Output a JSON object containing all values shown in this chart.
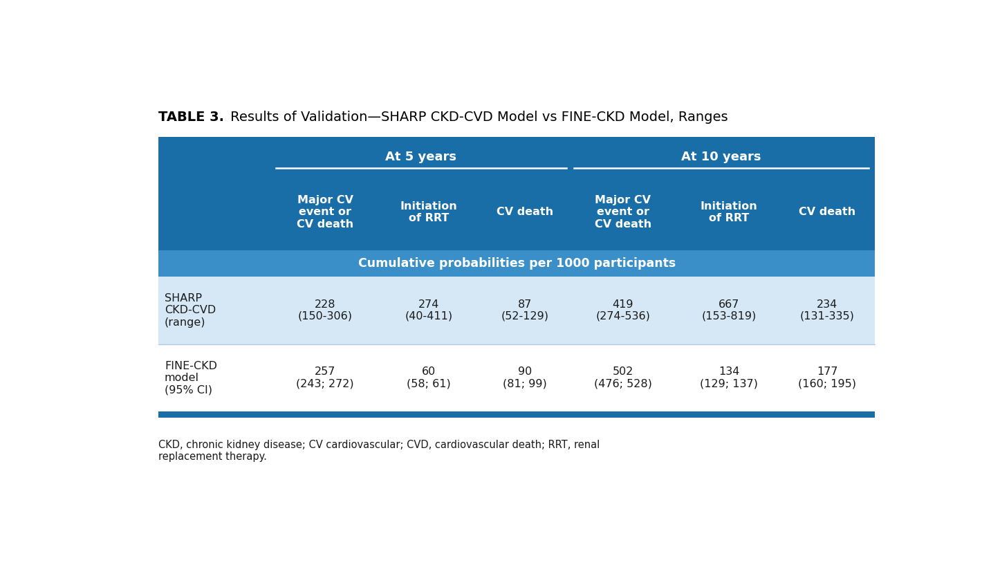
{
  "title_bold": "TABLE 3.",
  "title_regular": " Results of Validation—SHARP CKD-CVD Model vs FINE-CKD Model, Ranges",
  "header_bg_dark": "#1A6EA8",
  "header_bg_medium": "#3B8FC8",
  "row_bg_light": "#D6E8F5",
  "row_bg_white": "#FFFFFF",
  "separator_color": "#1A6EA8",
  "text_white": "#FFFFFF",
  "text_dark": "#1A1A1A",
  "col_headers": [
    "",
    "Major CV\nevent or\nCV death",
    "Initiation\nof RRT",
    "CV death",
    "Major CV\nevent or\nCV death",
    "Initiation\nof RRT",
    "CV death"
  ],
  "subheader": "Cumulative probabilities per 1000 participants",
  "rows": [
    {
      "label": "SHARP\nCKD-CVD\n(range)",
      "values": [
        "228\n(150-306)",
        "274\n(40-411)",
        "87\n(52-129)",
        "419\n(274-536)",
        "667\n(153-819)",
        "234\n(131-335)"
      ],
      "bg": "#D6E8F5"
    },
    {
      "label": "FINE-CKD\nmodel\n(95% CI)",
      "values": [
        "257\n(243; 272)",
        "60\n(58; 61)",
        "90\n(81; 99)",
        "502\n(476; 528)",
        "134\n(129; 137)",
        "177\n(160; 195)"
      ],
      "bg": "#FFFFFF"
    }
  ],
  "footnote": "CKD, chronic kidney disease; CV cardiovascular; CVD, cardiovascular death; RRT, renal\nreplacement therapy.",
  "fig_width": 14.33,
  "fig_height": 8.46
}
